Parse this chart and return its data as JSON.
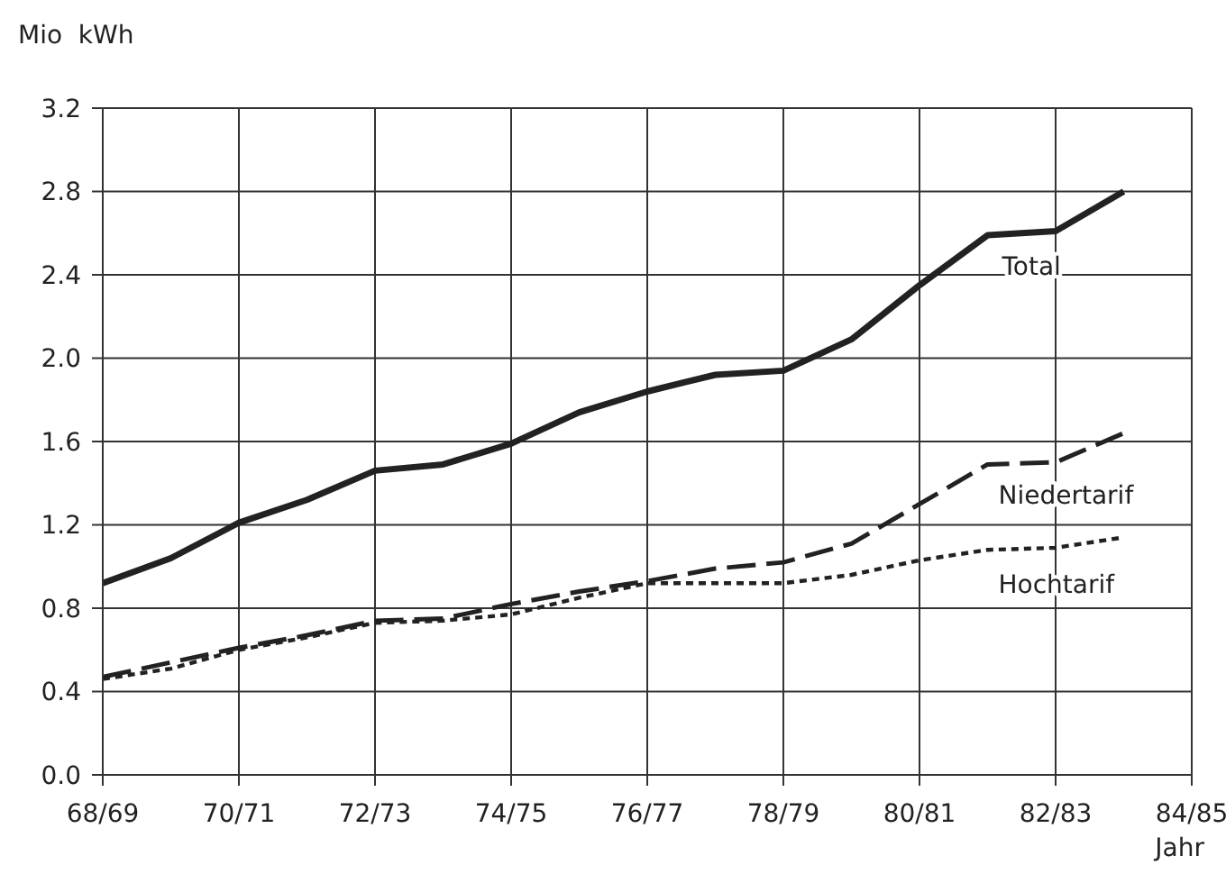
{
  "chart_data": {
    "type": "line",
    "ylabel": "Mio  kWh",
    "xlabel": "Jahr",
    "categories": [
      "68/69",
      null,
      "70/71",
      null,
      "72/73",
      null,
      "74/75",
      null,
      "76/77",
      null,
      "78/79",
      null,
      "80/81",
      null,
      "82/83",
      null,
      "84/85"
    ],
    "series": [
      {
        "name": "Total",
        "color": "#222222",
        "line_style": "solid",
        "values": [
          0.92,
          1.04,
          1.21,
          1.32,
          1.46,
          1.49,
          1.59,
          1.74,
          1.84,
          1.92,
          1.94,
          2.09,
          2.35,
          2.59,
          2.61,
          2.8,
          null
        ]
      },
      {
        "name": "Niedertarif",
        "color": "#222222",
        "line_style": "dashed",
        "values": [
          0.47,
          0.54,
          0.61,
          0.67,
          0.74,
          0.75,
          0.82,
          0.88,
          0.93,
          0.99,
          1.02,
          1.11,
          1.3,
          1.49,
          1.5,
          1.64,
          null
        ]
      },
      {
        "name": "Hochtarif",
        "color": "#222222",
        "line_style": "dotted",
        "values": [
          0.46,
          0.51,
          0.6,
          0.66,
          0.73,
          0.74,
          0.77,
          0.85,
          0.92,
          0.92,
          0.92,
          0.96,
          1.03,
          1.08,
          1.09,
          1.14,
          null
        ]
      }
    ],
    "ylim": [
      0,
      3.2
    ],
    "yticks": [
      {
        "value": 0,
        "label": "0.0"
      },
      0.4,
      0.8,
      1.2,
      1.6,
      {
        "value": 2,
        "label": "2.0"
      },
      2.4,
      2.8,
      3.2
    ],
    "grid": true,
    "marker": "none"
  }
}
